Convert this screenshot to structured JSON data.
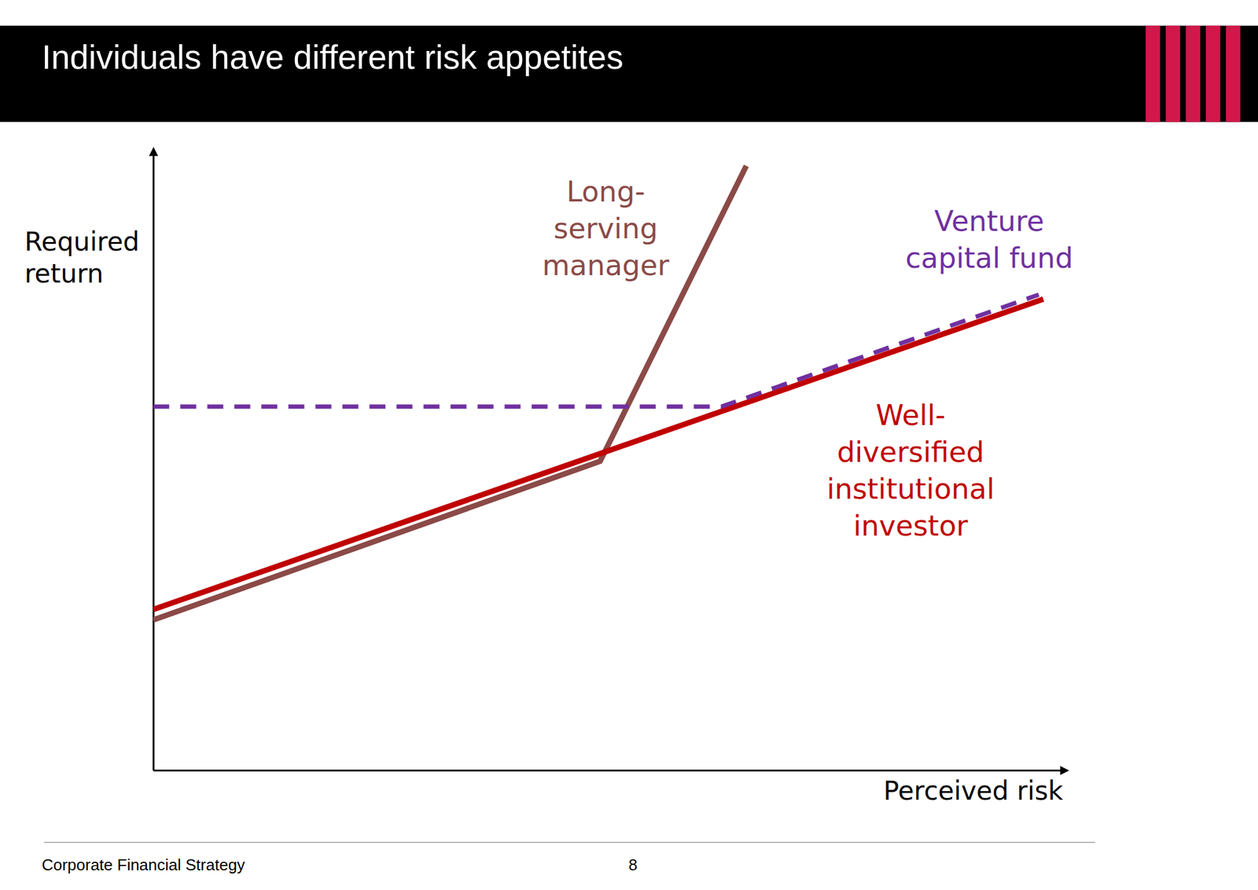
{
  "header": {
    "title": "Individuals have different risk appetites"
  },
  "chart_data": {
    "type": "line",
    "xlabel": "Perceived risk",
    "ylabel": "Required\nreturn",
    "xlim": [
      0,
      100
    ],
    "ylim": [
      0,
      125
    ],
    "xticks": [],
    "yticks": [],
    "tick_labels": false,
    "grid": false,
    "series": [
      {
        "name": "Long-\nserving\nmanager",
        "color": "#8b4a47",
        "line_style": "solid",
        "x": [
          0,
          48.9,
          64.9
        ],
        "values": [
          30.2,
          62.1,
          121.5
        ]
      },
      {
        "name": "Well-\ndiversified\ninstitutional\ninvestor",
        "color": "#c00000",
        "line_style": "solid",
        "x": [
          0,
          97.4
        ],
        "values": [
          32.3,
          94.7
        ]
      },
      {
        "name": "Venture\ncapital fund",
        "color": "#7030a0",
        "line_style": "dashed",
        "x": [
          0,
          62.2,
          96.9
        ],
        "values": [
          73.1,
          73.1,
          95.6
        ]
      }
    ]
  },
  "footer": {
    "text": "Corporate Financial Strategy",
    "page": 8
  }
}
